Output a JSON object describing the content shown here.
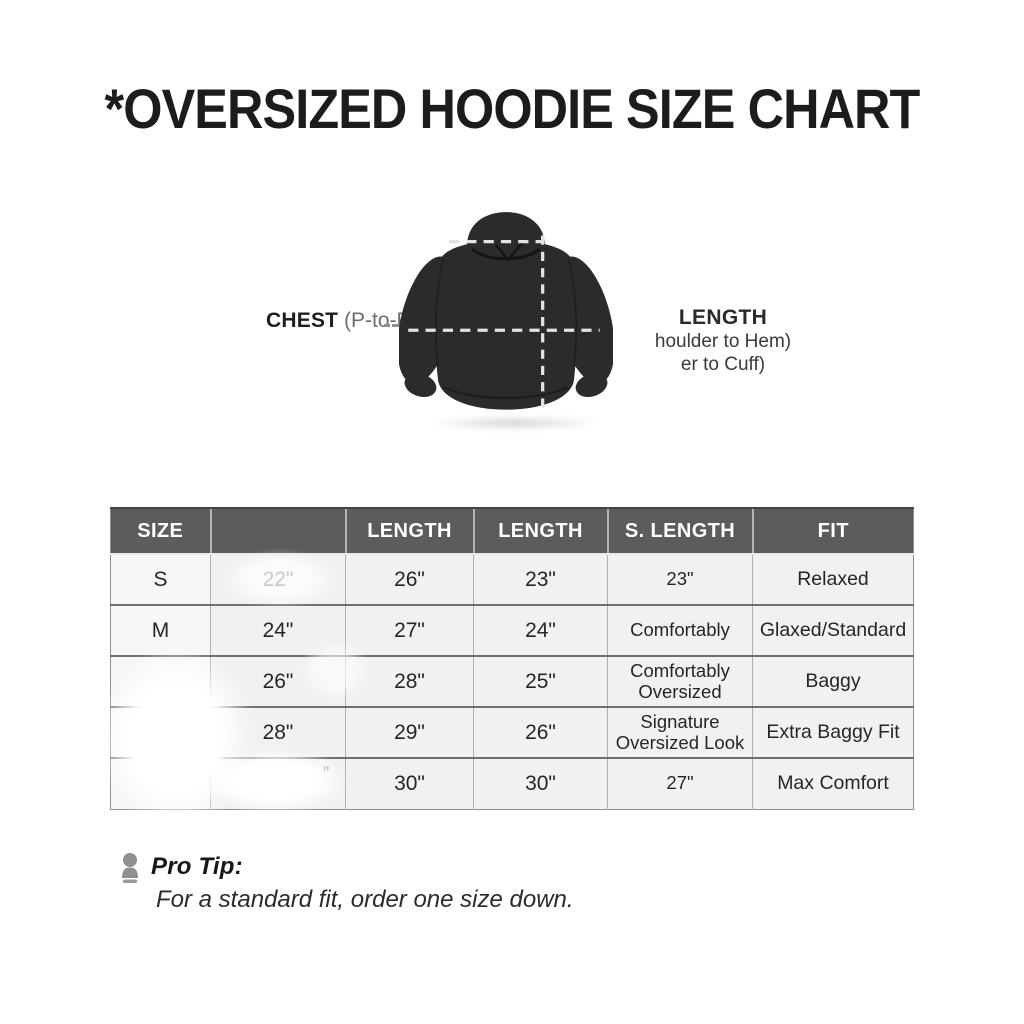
{
  "title": "*OVERSIZED HOODIE SIZE CHART",
  "diagram": {
    "chest_label": "CHEST",
    "chest_sublabel": "(P-to-P)",
    "length_label": "LENGTH",
    "length_sublabel_1": "houlder to Hem)",
    "length_sublabel_2": "er to Cuff)"
  },
  "table": {
    "headers": [
      "SIZE",
      "",
      "LENGTH",
      "LENGTH",
      "S. LENGTH",
      "FIT"
    ],
    "rows": [
      [
        "S",
        "22\"",
        "26\"",
        "23\"",
        "23\"",
        "Relaxed"
      ],
      [
        "M",
        "24\"",
        "27\"",
        "24\"",
        "Comfortably",
        "Glaxed/Standard"
      ],
      [
        "",
        "26\"",
        "28\"",
        "25\"",
        "Comfortably Oversized",
        "Baggy"
      ],
      [
        "",
        "28\"",
        "29\"",
        "26\"",
        "Signature Oversized Look",
        "Extra Baggy Fit"
      ],
      [
        "",
        "",
        "30\"",
        "30\"",
        "27\"",
        "Max Comfort"
      ]
    ],
    "erased_mark": "”"
  },
  "pro_tip": {
    "label": "Pro Tip:",
    "text": "For a standard fit, order one size down."
  },
  "colors": {
    "title_text": "#1c1c1c",
    "header_bg": "#5c5c5c",
    "header_text": "#ffffff",
    "cell_bg": "#f1f1f1",
    "cell_text": "#262626",
    "hoodie": "#2b2a2c",
    "dash": "#e3e3e3"
  }
}
